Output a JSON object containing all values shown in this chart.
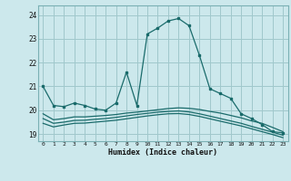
{
  "title": "",
  "xlabel": "Humidex (Indice chaleur)",
  "ylabel": "",
  "bg_color": "#cce8ec",
  "grid_color": "#a0c8cc",
  "line_color": "#1a6b6b",
  "xlim": [
    -0.5,
    23.5
  ],
  "ylim": [
    18.7,
    24.4
  ],
  "xticks": [
    0,
    1,
    2,
    3,
    4,
    5,
    6,
    7,
    8,
    9,
    10,
    11,
    12,
    13,
    14,
    15,
    16,
    17,
    18,
    19,
    20,
    21,
    22,
    23
  ],
  "yticks": [
    19,
    20,
    21,
    22,
    23,
    24
  ],
  "series": [
    {
      "x": [
        0,
        1,
        2,
        3,
        4,
        5,
        6,
        7,
        8,
        9,
        10,
        11,
        12,
        13,
        14,
        15,
        16,
        17,
        18,
        19,
        20,
        21,
        22,
        23
      ],
      "y": [
        21.0,
        20.2,
        20.15,
        20.3,
        20.2,
        20.05,
        20.0,
        20.3,
        21.6,
        20.2,
        23.2,
        23.45,
        23.75,
        23.85,
        23.55,
        22.3,
        20.9,
        20.7,
        20.5,
        19.85,
        19.65,
        19.4,
        19.1,
        19.05
      ],
      "marker": true
    },
    {
      "x": [
        0,
        1,
        2,
        3,
        4,
        5,
        6,
        7,
        8,
        9,
        10,
        11,
        12,
        13,
        14,
        15,
        16,
        17,
        18,
        19,
        20,
        21,
        22,
        23
      ],
      "y": [
        19.85,
        19.6,
        19.65,
        19.72,
        19.72,
        19.75,
        19.78,
        19.82,
        19.88,
        19.92,
        19.97,
        20.02,
        20.07,
        20.1,
        20.08,
        20.03,
        19.95,
        19.88,
        19.78,
        19.68,
        19.55,
        19.45,
        19.28,
        19.1
      ],
      "marker": false
    },
    {
      "x": [
        0,
        1,
        2,
        3,
        4,
        5,
        6,
        7,
        8,
        9,
        10,
        11,
        12,
        13,
        14,
        15,
        16,
        17,
        18,
        19,
        20,
        21,
        22,
        23
      ],
      "y": [
        19.65,
        19.45,
        19.5,
        19.57,
        19.58,
        19.62,
        19.65,
        19.7,
        19.76,
        19.82,
        19.87,
        19.92,
        19.95,
        19.97,
        19.93,
        19.85,
        19.75,
        19.65,
        19.55,
        19.45,
        19.32,
        19.2,
        19.08,
        18.95
      ],
      "marker": false
    },
    {
      "x": [
        0,
        1,
        2,
        3,
        4,
        5,
        6,
        7,
        8,
        9,
        10,
        11,
        12,
        13,
        14,
        15,
        16,
        17,
        18,
        19,
        20,
        21,
        22,
        23
      ],
      "y": [
        19.45,
        19.3,
        19.38,
        19.45,
        19.46,
        19.5,
        19.54,
        19.58,
        19.64,
        19.7,
        19.76,
        19.81,
        19.85,
        19.86,
        19.82,
        19.74,
        19.64,
        19.54,
        19.44,
        19.34,
        19.22,
        19.1,
        18.98,
        18.85
      ],
      "marker": false
    }
  ]
}
